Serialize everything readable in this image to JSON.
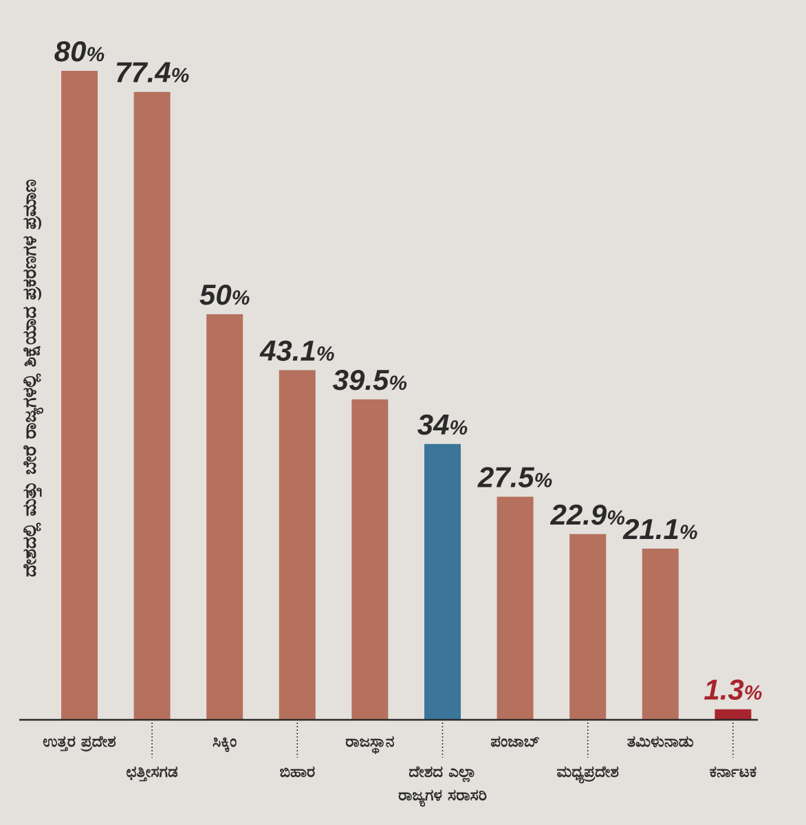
{
  "chart_data": {
    "type": "bar",
    "title": "",
    "xlabel": "",
    "ylabel": "ದೇಶದಲ್ಲಿ ಮತ್ತು ಬೇರೆ ರಾಜ್ಯಗಳಲ್ಲಿ ಶಿಕ್ಷೆಯಾದ ಪ್ರಕರಣಗಳ ಪ್ರಮಾಣ",
    "ylim": [
      0,
      80
    ],
    "grid": false,
    "legend": "none",
    "categories": [
      "ಉತ್ತರ ಪ್ರದೇಶ",
      "ಛತ್ತೀಸಗಡ",
      "ಸಿಕ್ಕಿಂ",
      "ಬಿಹಾರ",
      "ರಾಜಸ್ಥಾನ",
      "ದೇಶದ ಎಲ್ಲಾ ರಾಜ್ಯಗಳ ಸರಾಸರಿ",
      "ಪಂಜಾಬ್",
      "ಮಧ್ಯಪ್ರದೇಶ",
      "ತಮಿಳುನಾಡು",
      "ಕರ್ನಾಟಕ"
    ],
    "category_lines": [
      [
        "ಉತ್ತರ ಪ್ರದೇಶ"
      ],
      [
        "ಛತ್ತೀಸಗಡ"
      ],
      [
        "ಸಿಕ್ಕಿಂ"
      ],
      [
        "ಬಿಹಾರ"
      ],
      [
        "ರಾಜಸ್ಥಾನ"
      ],
      [
        "ದೇಶದ ಎಲ್ಲಾ",
        "ರಾಜ್ಯಗಳ ಸರಾಸರಿ"
      ],
      [
        "ಪಂಜಾಬ್"
      ],
      [
        "ಮಧ್ಯಪ್ರದೇಶ"
      ],
      [
        "ತಮಿಳುನಾಡು"
      ],
      [
        "ಕರ್ನಾಟಕ"
      ]
    ],
    "values": [
      80,
      77.4,
      50,
      43.1,
      39.5,
      34,
      27.5,
      22.9,
      21.1,
      1.3
    ],
    "value_labels": [
      "80",
      "77.4",
      "50",
      "43.1",
      "39.5",
      "34",
      "27.5",
      "22.9",
      "21.1",
      "1.3"
    ],
    "unit": "%",
    "colors": {
      "default_bar": "#b5715d",
      "average_bar": "#3b7599",
      "highlight_bar": "#a8242e",
      "default_label": "#2a2a2a",
      "highlight_label": "#a8242e",
      "axis": "#2a2a2a",
      "background": "#e4e1dc"
    },
    "bar_color_roles": [
      "default",
      "default",
      "default",
      "default",
      "default",
      "average",
      "default",
      "default",
      "default",
      "highlight"
    ],
    "label_rows": [
      "top",
      "bottom",
      "top",
      "bottom",
      "top",
      "bottom",
      "top",
      "bottom",
      "top",
      "bottom"
    ]
  }
}
